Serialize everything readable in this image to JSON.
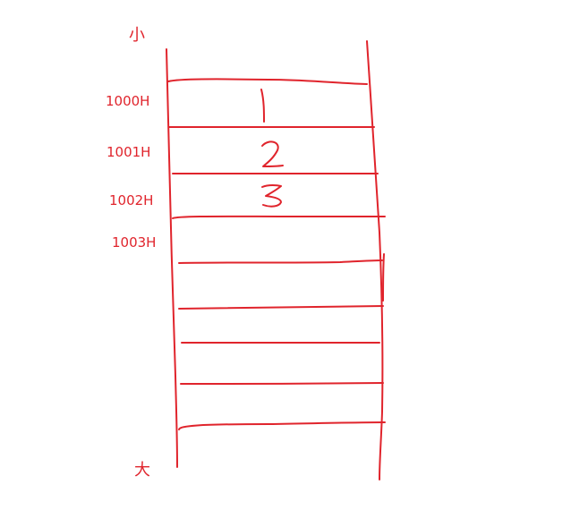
{
  "diagram": {
    "ink_color": "#e0242c",
    "top_label": "小",
    "bottom_label": "大",
    "addresses": [
      "1000H",
      "1001H",
      "1002H",
      "1003H"
    ],
    "cell_values": [
      "1",
      "2",
      "3"
    ]
  }
}
